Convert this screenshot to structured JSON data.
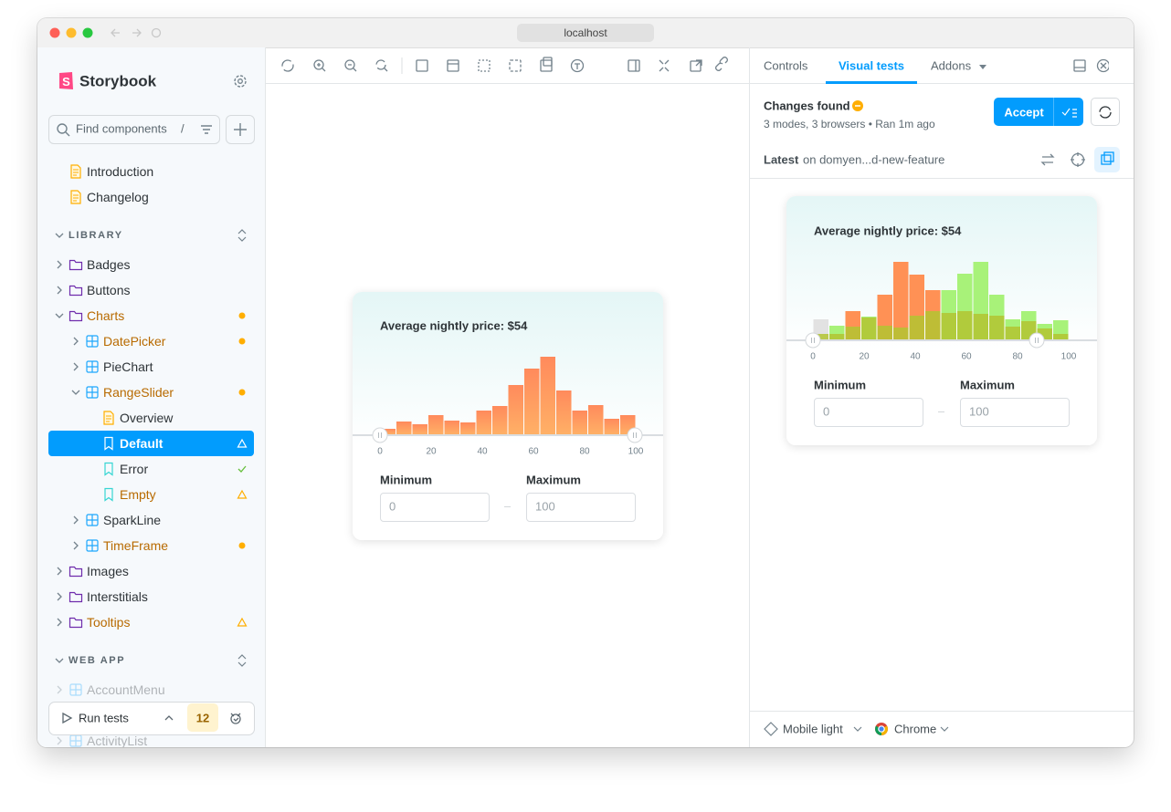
{
  "browser": {
    "url": "localhost"
  },
  "sidebar": {
    "brand": "Storybook",
    "search": {
      "placeholder": "Find components",
      "shortcut": "/"
    },
    "tree": [
      {
        "label": "Introduction",
        "kind": "doc",
        "depth": 0
      },
      {
        "label": "Changelog",
        "kind": "doc",
        "depth": 0
      },
      {
        "label": "LIBRARY",
        "kind": "section"
      },
      {
        "label": "Badges",
        "kind": "folder",
        "depth": 0
      },
      {
        "label": "Buttons",
        "kind": "folder",
        "depth": 0
      },
      {
        "label": "Charts",
        "kind": "folder",
        "depth": 0,
        "expanded": true,
        "status": "changed"
      },
      {
        "label": "DatePicker",
        "kind": "component",
        "depth": 1,
        "status": "changed"
      },
      {
        "label": "PieChart",
        "kind": "component",
        "depth": 1
      },
      {
        "label": "RangeSlider",
        "kind": "component",
        "depth": 1,
        "expanded": true,
        "status": "changed"
      },
      {
        "label": "Overview",
        "kind": "doc",
        "depth": 2
      },
      {
        "label": "Default",
        "kind": "story",
        "depth": 2,
        "status": "warning",
        "selected": true
      },
      {
        "label": "Error",
        "kind": "story",
        "depth": 2,
        "status": "passed"
      },
      {
        "label": "Empty",
        "kind": "story",
        "depth": 2,
        "status": "warning"
      },
      {
        "label": "SparkLine",
        "kind": "component",
        "depth": 1
      },
      {
        "label": "TimeFrame",
        "kind": "component",
        "depth": 1,
        "status": "changed"
      },
      {
        "label": "Images",
        "kind": "folder",
        "depth": 0
      },
      {
        "label": "Interstitials",
        "kind": "folder",
        "depth": 0
      },
      {
        "label": "Tooltips",
        "kind": "folder",
        "depth": 0,
        "status": "warning"
      },
      {
        "label": "WEB APP",
        "kind": "section"
      },
      {
        "label": "AccountMenu",
        "kind": "component",
        "depth": 0,
        "faded": true
      },
      {
        "label": "ActivityList",
        "kind": "component",
        "depth": 0,
        "faded": true
      }
    ],
    "run_tests": {
      "label": "Run tests",
      "count": 12
    }
  },
  "preview": {
    "title": "Average nightly price: $54",
    "histogram": {
      "counts": [
        6,
        14,
        11,
        21,
        15,
        13,
        26,
        31,
        54,
        72,
        85,
        48,
        26,
        32,
        17,
        21
      ],
      "xlim": [
        0,
        100
      ],
      "xticks": [
        0,
        20,
        40,
        60,
        80,
        100
      ],
      "color": "#ff8a5c"
    },
    "min_label": "Minimum",
    "max_label": "Maximum",
    "min_value": 0,
    "max_value": 100
  },
  "addon_panel": {
    "tabs": [
      "Controls",
      "Visual tests",
      "Addons"
    ],
    "active_tab": 1,
    "status": "Changes found",
    "meta": "3 modes, 3 browsers • Ran 1m ago",
    "accept": "Accept",
    "latest": "Latest",
    "branch": "on domyen...d-new-feature",
    "snapshot": {
      "title": "Average nightly price: $54",
      "histogram": {
        "heights": [
          22,
          15,
          31,
          25,
          49,
          85,
          71,
          54,
          54,
          72,
          85,
          49,
          22,
          31,
          17,
          21
        ],
        "colors": [
          "#e2e2e2",
          "#a8f279",
          "#ff9155",
          "#a8f279",
          "#ff9155",
          "#ff9155",
          "#ff9155",
          "#ff9155",
          "#a8f279",
          "#a8f279",
          "#a8f279",
          "#a8f279",
          "#a8f279",
          "#a8f279",
          "#a8f279",
          "#a8f279"
        ],
        "base": [
          6,
          6,
          14,
          24,
          15,
          13,
          26,
          31,
          29,
          31,
          28,
          26,
          14,
          20,
          12,
          6
        ],
        "base_color": "#b3c431",
        "xlim": [
          0,
          100
        ],
        "xticks": [
          0,
          20,
          40,
          60,
          80,
          100
        ]
      },
      "min_label": "Minimum",
      "max_label": "Maximum",
      "min_value": 0,
      "max_value": 100
    },
    "mode": "Mobile light",
    "browser_name": "Chrome"
  }
}
